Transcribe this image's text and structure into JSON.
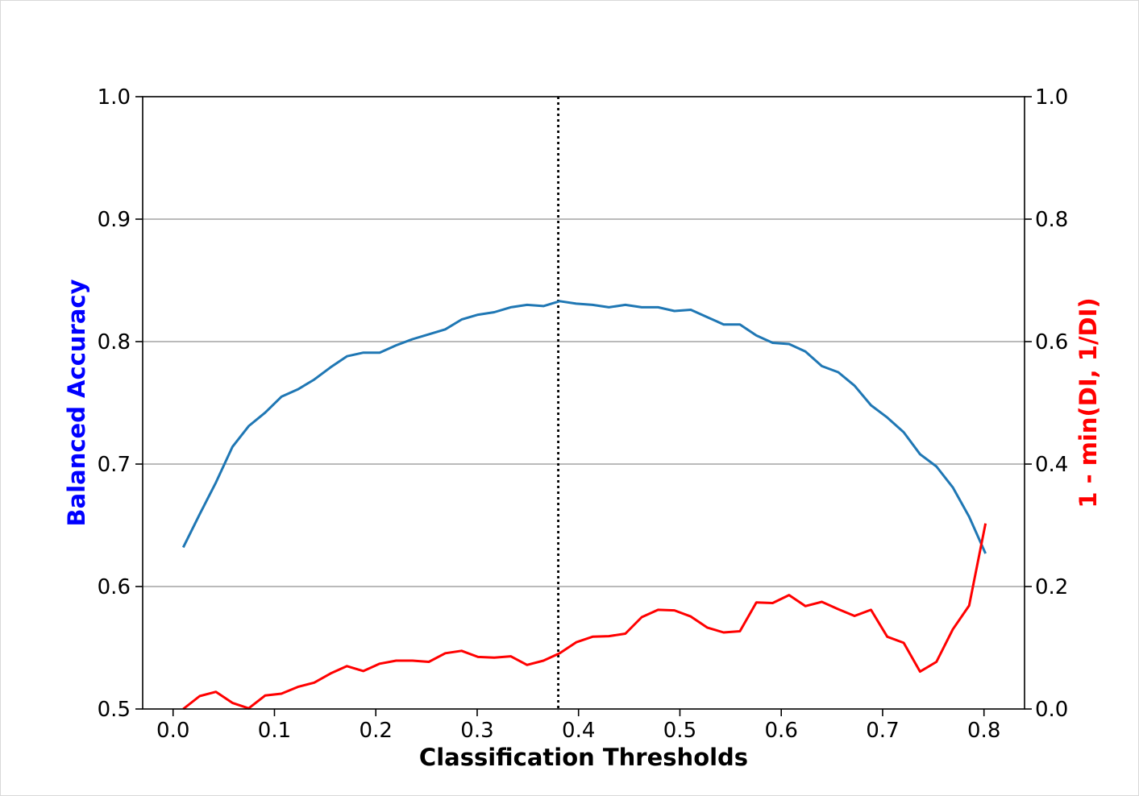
{
  "chart_data": {
    "type": "line",
    "xlabel": "Classification Thresholds",
    "ylabel_left": "Balanced Accuracy",
    "ylabel_right": "1 - min(DI, 1/DI)",
    "xlim": [
      -0.03,
      0.84
    ],
    "ylim_left": [
      0.5,
      1.0
    ],
    "ylim_right": [
      0.0,
      1.0
    ],
    "x_ticks": [
      0.0,
      0.1,
      0.2,
      0.3,
      0.4,
      0.5,
      0.6,
      0.7,
      0.8
    ],
    "x_tick_labels": [
      "0.0",
      "0.1",
      "0.2",
      "0.3",
      "0.4",
      "0.5",
      "0.6",
      "0.7",
      "0.8"
    ],
    "y_left_ticks": [
      0.5,
      0.6,
      0.7,
      0.8,
      0.9,
      1.0
    ],
    "y_left_tick_labels": [
      "0.5",
      "0.6",
      "0.7",
      "0.8",
      "0.9",
      "1.0"
    ],
    "y_right_ticks": [
      0.0,
      0.2,
      0.4,
      0.6,
      0.8,
      1.0
    ],
    "y_right_tick_labels": [
      "0.0",
      "0.2",
      "0.4",
      "0.6",
      "0.8",
      "1.0"
    ],
    "grid": "horizontal",
    "vline_x": 0.38,
    "colors": {
      "accuracy_line": "#1f77b4",
      "fairness_line": "#ff0000",
      "left_label": "#0000ff",
      "right_label": "#ff0000",
      "grid": "#b0b0b0",
      "vline": "#000000"
    },
    "x": [
      0.01,
      0.0262,
      0.0423,
      0.0585,
      0.0746,
      0.0908,
      0.1069,
      0.1231,
      0.1392,
      0.1554,
      0.1715,
      0.1877,
      0.2038,
      0.22,
      0.2362,
      0.2523,
      0.2685,
      0.2846,
      0.3008,
      0.3169,
      0.3331,
      0.3492,
      0.3654,
      0.3815,
      0.3977,
      0.4138,
      0.43,
      0.4462,
      0.4623,
      0.4785,
      0.4946,
      0.5108,
      0.5269,
      0.5431,
      0.5592,
      0.5754,
      0.5915,
      0.6077,
      0.6238,
      0.64,
      0.6562,
      0.6723,
      0.6885,
      0.7046,
      0.7208,
      0.7369,
      0.7531,
      0.7692,
      0.7854,
      0.8015
    ],
    "series": [
      {
        "axis": "left",
        "values": [
          0.632,
          0.659,
          0.685,
          0.714,
          0.731,
          0.742,
          0.755,
          0.761,
          0.769,
          0.779,
          0.788,
          0.791,
          0.791,
          0.797,
          0.802,
          0.806,
          0.81,
          0.818,
          0.822,
          0.824,
          0.828,
          0.83,
          0.829,
          0.833,
          0.831,
          0.83,
          0.828,
          0.83,
          0.828,
          0.828,
          0.825,
          0.826,
          0.82,
          0.814,
          0.814,
          0.805,
          0.799,
          0.798,
          0.792,
          0.78,
          0.775,
          0.764,
          0.748,
          0.738,
          0.726,
          0.708,
          0.698,
          0.681,
          0.657,
          0.627
        ]
      },
      {
        "axis": "right",
        "values": [
          0.0,
          0.021,
          0.028,
          0.01,
          0.001,
          0.022,
          0.025,
          0.036,
          0.043,
          0.058,
          0.07,
          0.062,
          0.074,
          0.079,
          0.079,
          0.077,
          0.091,
          0.095,
          0.085,
          0.084,
          0.086,
          0.072,
          0.079,
          0.091,
          0.109,
          0.118,
          0.119,
          0.123,
          0.15,
          0.162,
          0.161,
          0.151,
          0.133,
          0.125,
          0.127,
          0.174,
          0.173,
          0.186,
          0.168,
          0.175,
          0.163,
          0.152,
          0.162,
          0.118,
          0.108,
          0.061,
          0.077,
          0.13,
          0.169,
          0.303
        ]
      }
    ]
  }
}
